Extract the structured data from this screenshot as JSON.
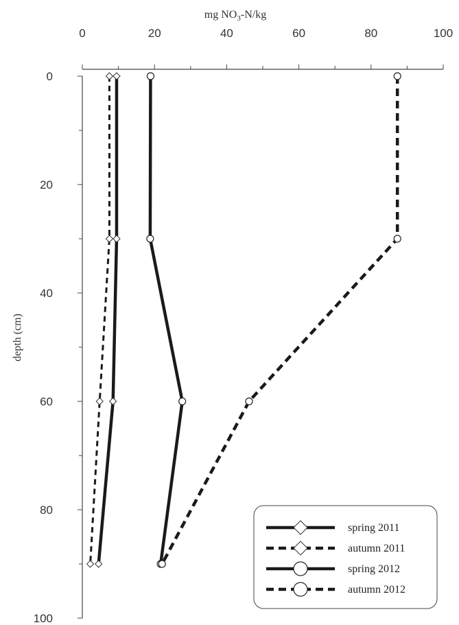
{
  "chart_data": {
    "type": "line",
    "title": "",
    "xlabel": {
      "prefix": "mg NO",
      "subscript": "3",
      "suffix": "-N/kg"
    },
    "ylabel": "depth (cm)",
    "xlim": [
      0,
      100
    ],
    "ylim": [
      0,
      100
    ],
    "y_inverted": true,
    "x_axis_position": "top",
    "x_ticks": [
      0,
      20,
      40,
      60,
      80,
      100
    ],
    "x_minor_step": 10,
    "y_ticks": [
      0,
      20,
      40,
      60,
      80,
      100
    ],
    "y_minor_step": 10,
    "grid": false,
    "legend_position": "bottom-right",
    "series": [
      {
        "name": "spring 2011",
        "line_style": "solid",
        "marker": "diamond",
        "points": [
          {
            "x": 9.5,
            "y": 0
          },
          {
            "x": 9.5,
            "y": 30
          },
          {
            "x": 8.5,
            "y": 60
          },
          {
            "x": 4.5,
            "y": 90
          }
        ]
      },
      {
        "name": "autumn 2011",
        "line_style": "dashed",
        "marker": "diamond",
        "points": [
          {
            "x": 7.5,
            "y": 0
          },
          {
            "x": 7.5,
            "y": 30
          },
          {
            "x": 4.8,
            "y": 60
          },
          {
            "x": 2.2,
            "y": 90
          }
        ]
      },
      {
        "name": "spring 2012",
        "line_style": "solid",
        "marker": "circle",
        "points": [
          {
            "x": 18.9,
            "y": 0
          },
          {
            "x": 18.8,
            "y": 30
          },
          {
            "x": 27.7,
            "y": 60
          },
          {
            "x": 21.7,
            "y": 90
          }
        ]
      },
      {
        "name": "autumn 2012",
        "line_style": "dashed",
        "marker": "circle",
        "points": [
          {
            "x": 87.3,
            "y": 0
          },
          {
            "x": 87.3,
            "y": 30
          },
          {
            "x": 46.2,
            "y": 60
          },
          {
            "x": 22.1,
            "y": 90
          }
        ]
      }
    ]
  }
}
